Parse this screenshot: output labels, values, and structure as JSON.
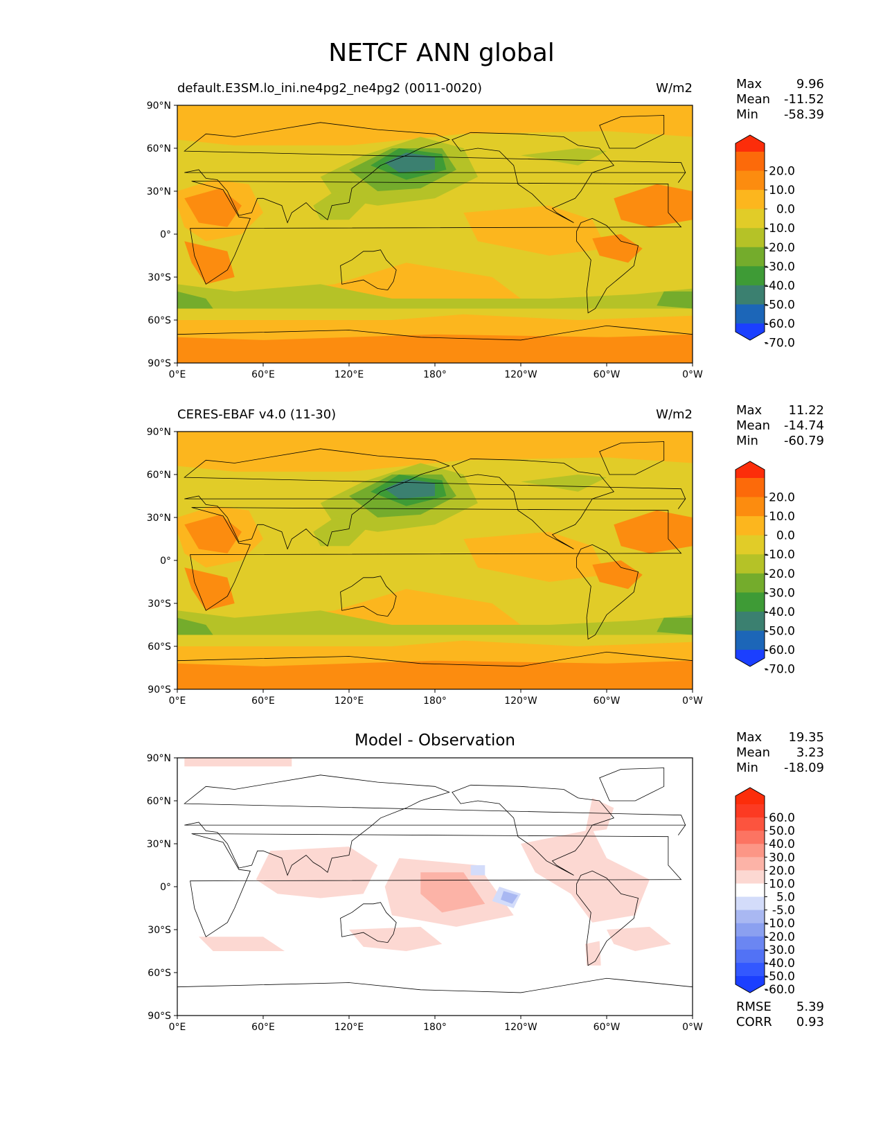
{
  "title": "NETCF ANN global",
  "lat_ticks": [
    "90°N",
    "60°N",
    "30°N",
    "0°",
    "30°S",
    "60°S",
    "90°S"
  ],
  "lon_ticks": [
    "0°E",
    "60°E",
    "120°E",
    "180°",
    "120°W",
    "60°W",
    "0°W"
  ],
  "panels": [
    {
      "title_left": "default.E3SM.lo_ini.ne4pg2_ne4pg2 (0011-0020)",
      "title_center": "",
      "units": "W/m2",
      "stats": [
        {
          "label": "Max",
          "value": "9.96"
        },
        {
          "label": "Mean",
          "value": "-11.52"
        },
        {
          "label": "Min",
          "value": "-58.39"
        }
      ],
      "colorbar_labels": [
        "20.0",
        "10.0",
        "0.0",
        "-10.0",
        "-20.0",
        "-30.0",
        "-40.0",
        "-50.0",
        "-60.0",
        "-70.0"
      ]
    },
    {
      "title_left": "CERES-EBAF v4.0 (11-30)",
      "title_center": "",
      "units": "W/m2",
      "stats": [
        {
          "label": "Max",
          "value": "11.22"
        },
        {
          "label": "Mean",
          "value": "-14.74"
        },
        {
          "label": "Min",
          "value": "-60.79"
        }
      ],
      "colorbar_labels": [
        "20.0",
        "10.0",
        "0.0",
        "-10.0",
        "-20.0",
        "-30.0",
        "-40.0",
        "-50.0",
        "-60.0",
        "-70.0"
      ]
    },
    {
      "title_left": "",
      "title_center": "Model - Observation",
      "units": "",
      "stats": [
        {
          "label": "Max",
          "value": "19.35"
        },
        {
          "label": "Mean",
          "value": "3.23"
        },
        {
          "label": "Min",
          "value": "-18.09"
        }
      ],
      "colorbar_labels": [
        "60.0",
        "50.0",
        "40.0",
        "30.0",
        "20.0",
        "10.0",
        "5.0",
        "-5.0",
        "-10.0",
        "-20.0",
        "-30.0",
        "-40.0",
        "-50.0",
        "-60.0"
      ],
      "metrics": [
        {
          "label": "RMSE",
          "value": "5.39"
        },
        {
          "label": "CORR",
          "value": "0.93"
        }
      ]
    }
  ],
  "colors": {
    "field_cmap": [
      "#1b3fff",
      "#1c66b8",
      "#3b8070",
      "#3e9b36",
      "#74ac2c",
      "#b5c227",
      "#e1cc28",
      "#fcb61e",
      "#fc8c0f",
      "#fc6a0a",
      "#fc2d0a"
    ],
    "diff_cmap": [
      "#1b3fff",
      "#3358ff",
      "#5272f5",
      "#6b86f2",
      "#8ba0f0",
      "#a9b8f2",
      "#d3dcfa",
      "#ffffff",
      "#fcd8d2",
      "#fcb3a7",
      "#fc9686",
      "#fc7462",
      "#fc543e",
      "#fc3a22",
      "#fc2d0a"
    ],
    "coastline": "#000000"
  }
}
